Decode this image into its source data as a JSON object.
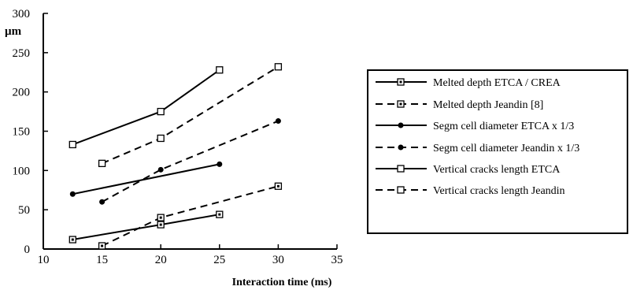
{
  "chart_data": {
    "type": "line",
    "ylabel": "µm",
    "xlabel": "Interaction time (ms)",
    "xlim": [
      10,
      35
    ],
    "ylim": [
      0,
      300
    ],
    "xticks": [
      10,
      15,
      20,
      25,
      30,
      35
    ],
    "yticks": [
      0,
      50,
      100,
      150,
      200,
      250,
      300
    ],
    "grid": false,
    "legend_position": "right",
    "series": [
      {
        "name": "Melted depth ETCA / CREA",
        "line": "solid",
        "marker": "square-dot",
        "x": [
          12.5,
          20,
          25
        ],
        "y": [
          12,
          31,
          44
        ]
      },
      {
        "name": "Melted depth Jeandin [8]",
        "line": "dashed",
        "marker": "square-dot",
        "x": [
          15,
          20,
          30
        ],
        "y": [
          4,
          40,
          80
        ]
      },
      {
        "name": "Segm cell diameter ETCA x 1/3",
        "line": "solid",
        "marker": "circle-filled",
        "x": [
          12.5,
          25
        ],
        "y": [
          70,
          108
        ]
      },
      {
        "name": "Segm cell diameter Jeandin x 1/3",
        "line": "dashed",
        "marker": "circle-filled",
        "x": [
          15,
          20,
          30
        ],
        "y": [
          60,
          101,
          163
        ]
      },
      {
        "name": "Vertical cracks length ETCA",
        "line": "solid",
        "marker": "square-open",
        "x": [
          12.5,
          20,
          25
        ],
        "y": [
          133,
          175,
          228
        ]
      },
      {
        "name": "Vertical cracks length Jeandin",
        "line": "dashed",
        "marker": "square-open",
        "x": [
          15,
          20,
          30
        ],
        "y": [
          109,
          141,
          232
        ]
      }
    ]
  }
}
